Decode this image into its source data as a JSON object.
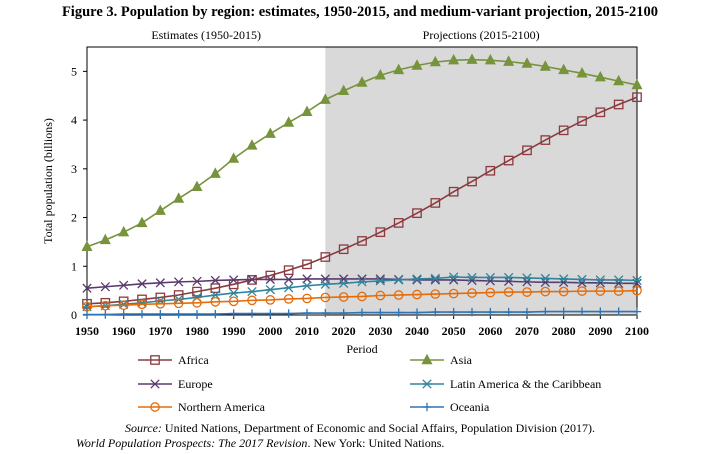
{
  "figure": {
    "title": "Figure 3. Population by region: estimates, 1950-2015, and medium-variant projection, 2015-2100",
    "source_label": "Source:",
    "source_text": "United Nations, Department of Economic and Social Affairs, Population Division (2017).",
    "source_italic": "World Population Prospects: The 2017 Revision",
    "source_tail": ". New York: United Nations."
  },
  "chart_data": {
    "type": "line",
    "xlabel": "Period",
    "ylabel": "Total population (billions)",
    "xlim": [
      1950,
      2100
    ],
    "ylim": [
      0,
      5.5
    ],
    "x_ticks": [
      1950,
      1960,
      1970,
      1980,
      1990,
      2000,
      2010,
      2020,
      2030,
      2040,
      2050,
      2060,
      2070,
      2080,
      2090,
      2100
    ],
    "y_ticks": [
      0,
      1,
      2,
      3,
      4,
      5
    ],
    "grid": false,
    "annotations": [
      {
        "text": "Estimates (1950-2015)",
        "x_from": 1950,
        "x_to": 2015
      },
      {
        "text": "Projections (2015-2100)",
        "x_from": 2015,
        "x_to": 2100,
        "shaded": true
      }
    ],
    "legend_position": "bottom",
    "x": [
      1950,
      1955,
      1960,
      1965,
      1970,
      1975,
      1980,
      1985,
      1990,
      1995,
      2000,
      2005,
      2010,
      2015,
      2020,
      2025,
      2030,
      2035,
      2040,
      2045,
      2050,
      2055,
      2060,
      2065,
      2070,
      2075,
      2080,
      2085,
      2090,
      2095,
      2100
    ],
    "series": [
      {
        "name": "Africa",
        "color": "#8b3a3f",
        "marker": "square",
        "values": [
          0.23,
          0.25,
          0.28,
          0.32,
          0.36,
          0.41,
          0.48,
          0.55,
          0.63,
          0.72,
          0.81,
          0.92,
          1.04,
          1.19,
          1.35,
          1.52,
          1.7,
          1.89,
          2.09,
          2.3,
          2.53,
          2.74,
          2.96,
          3.17,
          3.38,
          3.59,
          3.79,
          3.98,
          4.16,
          4.32,
          4.47
        ]
      },
      {
        "name": "Asia",
        "color": "#77933c",
        "marker": "triangle",
        "values": [
          1.4,
          1.54,
          1.7,
          1.89,
          2.14,
          2.39,
          2.63,
          2.9,
          3.21,
          3.48,
          3.72,
          3.95,
          4.17,
          4.42,
          4.6,
          4.77,
          4.92,
          5.03,
          5.12,
          5.19,
          5.23,
          5.24,
          5.23,
          5.2,
          5.16,
          5.1,
          5.03,
          4.96,
          4.88,
          4.8,
          4.72
        ]
      },
      {
        "name": "Europe",
        "color": "#5b3a6e",
        "marker": "x",
        "values": [
          0.55,
          0.58,
          0.61,
          0.64,
          0.66,
          0.68,
          0.69,
          0.71,
          0.72,
          0.73,
          0.73,
          0.73,
          0.74,
          0.74,
          0.74,
          0.74,
          0.74,
          0.73,
          0.72,
          0.72,
          0.72,
          0.71,
          0.7,
          0.69,
          0.68,
          0.67,
          0.67,
          0.66,
          0.66,
          0.65,
          0.65
        ]
      },
      {
        "name": "Latin America & the Caribbean",
        "color": "#31849b",
        "marker": "asterisk",
        "values": [
          0.17,
          0.19,
          0.22,
          0.25,
          0.29,
          0.32,
          0.36,
          0.41,
          0.45,
          0.48,
          0.52,
          0.56,
          0.6,
          0.63,
          0.65,
          0.68,
          0.7,
          0.72,
          0.74,
          0.75,
          0.78,
          0.77,
          0.77,
          0.77,
          0.76,
          0.75,
          0.74,
          0.73,
          0.72,
          0.72,
          0.71
        ]
      },
      {
        "name": "Northern America",
        "color": "#e46c0a",
        "marker": "circle",
        "values": [
          0.17,
          0.19,
          0.2,
          0.22,
          0.23,
          0.24,
          0.25,
          0.27,
          0.28,
          0.3,
          0.31,
          0.33,
          0.34,
          0.36,
          0.37,
          0.38,
          0.4,
          0.41,
          0.42,
          0.43,
          0.44,
          0.45,
          0.46,
          0.47,
          0.47,
          0.48,
          0.48,
          0.49,
          0.49,
          0.49,
          0.5
        ]
      },
      {
        "name": "Oceania",
        "color": "#2e75b6",
        "marker": "plus",
        "values": [
          0.01,
          0.01,
          0.02,
          0.02,
          0.02,
          0.02,
          0.02,
          0.02,
          0.03,
          0.03,
          0.03,
          0.03,
          0.04,
          0.04,
          0.04,
          0.05,
          0.05,
          0.05,
          0.05,
          0.06,
          0.06,
          0.06,
          0.06,
          0.06,
          0.06,
          0.07,
          0.07,
          0.07,
          0.07,
          0.07,
          0.07
        ]
      }
    ]
  }
}
